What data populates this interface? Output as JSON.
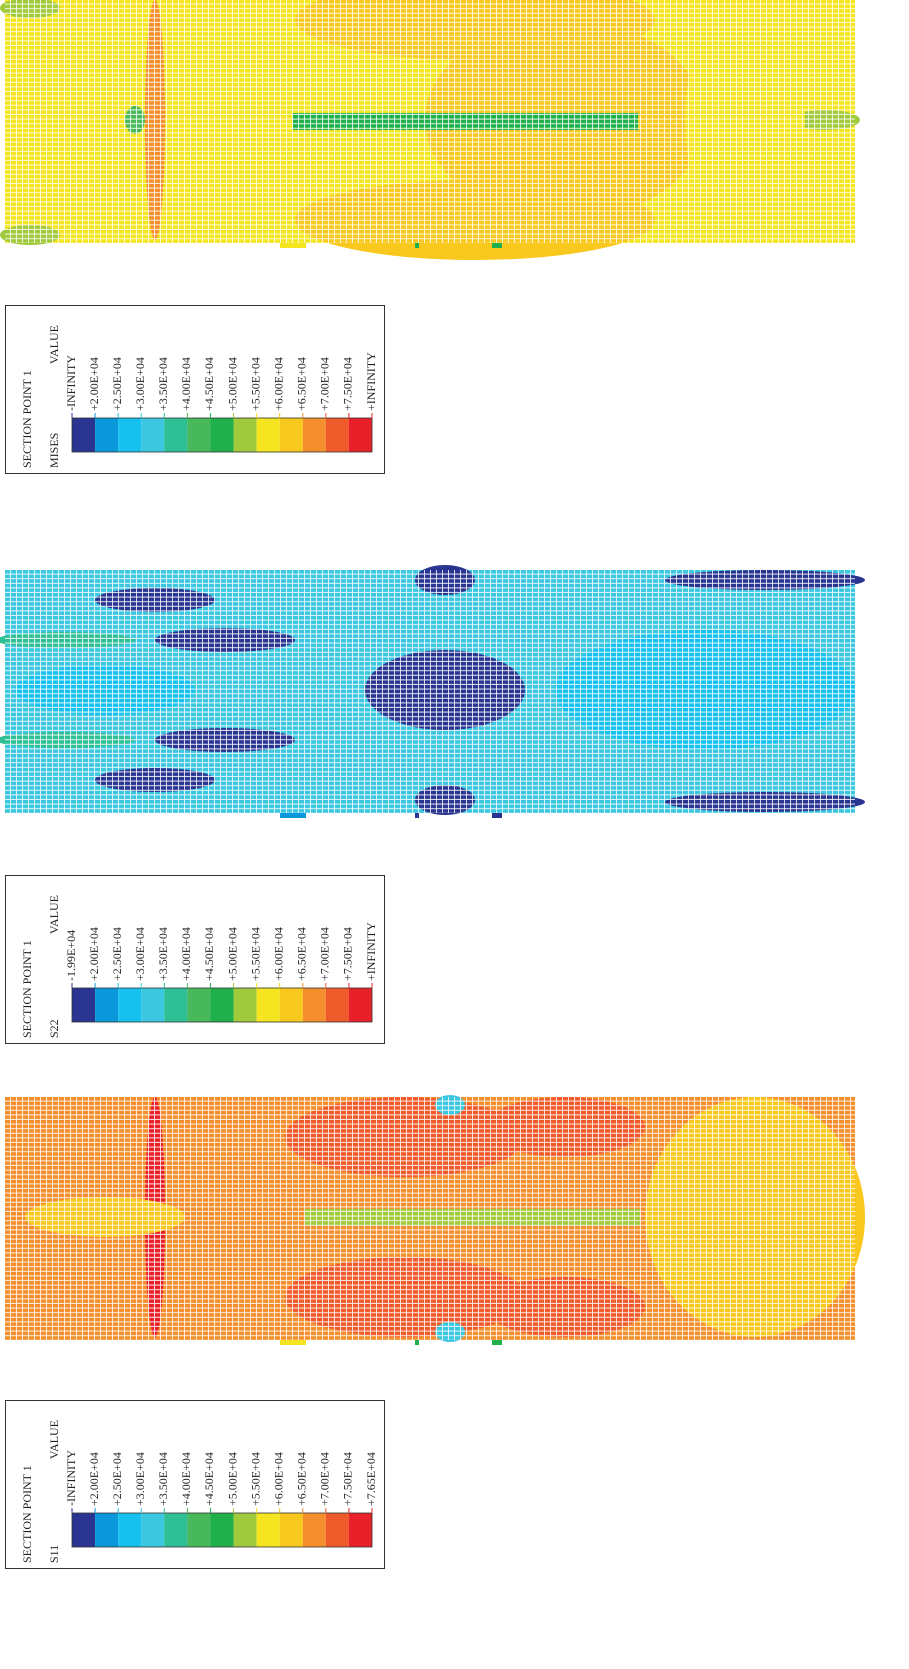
{
  "legend_colors": [
    "#2a3591",
    "#0a98db",
    "#16c0ef",
    "#3cc7e0",
    "#2fbf95",
    "#48b95a",
    "#1fb04b",
    "#a0c93c",
    "#f5e520",
    "#f9c81e",
    "#f58e2d",
    "#ef5a2b",
    "#e8202a"
  ],
  "panels": [
    {
      "legend": {
        "title": "SECTION POINT 1",
        "variable": "MISES",
        "header": "VALUE",
        "labels": [
          "-INFINITY",
          "+2.00E+04",
          "+2.50E+04",
          "+3.00E+04",
          "+3.50E+04",
          "+4.00E+04",
          "+4.50E+04",
          "+5.00E+04",
          "+5.50E+04",
          "+6.00E+04",
          "+6.50E+04",
          "+7.00E+04",
          "+7.50E+04",
          "+INFINITY"
        ]
      }
    },
    {
      "legend": {
        "title": "SECTION POINT 1",
        "variable": "S22",
        "header": "VALUE",
        "labels": [
          "-1.99E+04",
          "+2.00E+04",
          "+2.50E+04",
          "+3.00E+04",
          "+3.50E+04",
          "+4.00E+04",
          "+4.50E+04",
          "+5.00E+04",
          "+5.50E+04",
          "+6.00E+04",
          "+6.50E+04",
          "+7.00E+04",
          "+7.50E+04",
          "+INFINITY"
        ]
      }
    },
    {
      "legend": {
        "title": "SECTION POINT 1",
        "variable": "S11",
        "header": "VALUE",
        "labels": [
          "-INFINITY",
          "+2.00E+04",
          "+2.50E+04",
          "+3.00E+04",
          "+3.50E+04",
          "+4.00E+04",
          "+4.50E+04",
          "+5.00E+04",
          "+5.50E+04",
          "+6.00E+04",
          "+6.50E+04",
          "+7.00E+04",
          "+7.50E+04",
          "+7.65E+04"
        ]
      }
    }
  ]
}
